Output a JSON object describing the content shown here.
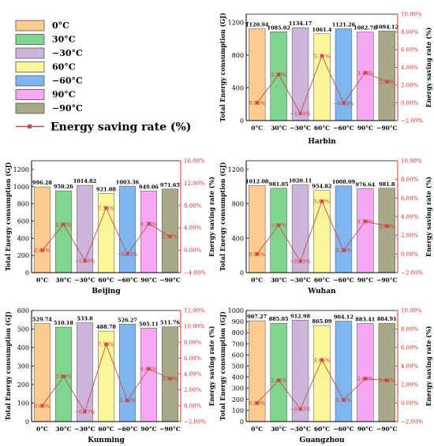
{
  "colors": {
    "bars": [
      "#fbcb8f",
      "#7fd48f",
      "#cdb4dc",
      "#fbf59a",
      "#7fb6ef",
      "#f6a9f2",
      "#a8a888"
    ],
    "line": "#c0504d",
    "axis_right": "#e0312a"
  },
  "legend": {
    "items": [
      "0°C",
      "30°C",
      "−30°C",
      "60°C",
      "−60°C",
      "90°C",
      "−90°C"
    ],
    "line_label": "Energy saving rate (%)"
  },
  "chart_data": [
    {
      "type": "bar",
      "title": "Harbin",
      "categories": [
        "0°C",
        "30°C",
        "−30°C",
        "60°C",
        "−60°C",
        "90°C",
        "−90°C"
      ],
      "values": [
        1120.94,
        1085.02,
        1134.17,
        1061.4,
        1121.26,
        1082.78,
        1094.12
      ],
      "value_labels": [
        "1120.94",
        "1085.02",
        "1134.17",
        "1061.4",
        "1121.26",
        "1082.78",
        "1094.12"
      ],
      "saving_rate": [
        0.0,
        3.2,
        -1.18,
        5.31,
        -0.03,
        3.4,
        2.39
      ],
      "saving_labels": [
        "0.00%",
        "3.20%",
        "−1.18%",
        "5.31%",
        "−0.03%",
        "3.40%",
        "2.39%"
      ],
      "ylabel": "Total Energy consumption (GJ)",
      "y2label": "Energy saving rate (%)",
      "ylim": [
        0,
        1300
      ],
      "yticks": [
        "0",
        "400",
        "800",
        "1200"
      ],
      "yticks_values": [
        0,
        400,
        800,
        1200
      ],
      "y2lim": [
        -2,
        10
      ],
      "y2ticks": [
        "−2.00%",
        "0.00%",
        "2.00%",
        "4.00%",
        "6.00%",
        "8.00%",
        "10.00%"
      ],
      "y2ticks_values": [
        -2,
        0,
        2,
        4,
        6,
        8,
        10
      ]
    },
    {
      "type": "bar",
      "title": "Beijing",
      "categories": [
        "0°C",
        "30°C",
        "−30°C",
        "60°C",
        "−60°C",
        "90°C",
        "−90°C"
      ],
      "values": [
        996.28,
        950.26,
        1014.82,
        921.08,
        1003.36,
        949.06,
        971.65
      ],
      "value_labels": [
        "996.28",
        "950.26",
        "1014.82",
        "921.08",
        "1003.36",
        "949.06",
        "971.65"
      ],
      "saving_rate": [
        0.0,
        4.62,
        -1.86,
        7.55,
        -0.71,
        4.74,
        2.47
      ],
      "saving_labels": [
        "0.00%",
        "4.62%",
        "−1.86%",
        "7.55%",
        "−0.71%",
        "4.74%",
        "2.47%"
      ],
      "ylabel": "Total Energy consumption (GJ)",
      "y2label": "Energy saving rate (%)",
      "ylim": [
        0,
        1300
      ],
      "yticks": [
        "0",
        "200",
        "400",
        "600",
        "800",
        "1000",
        "1200"
      ],
      "yticks_values": [
        0,
        200,
        400,
        600,
        800,
        1000,
        1200
      ],
      "y2lim": [
        -4,
        16
      ],
      "y2ticks": [
        "−4.00%",
        "0.00%",
        "4.00%",
        "8.00%",
        "12.00%",
        "16.00%"
      ],
      "y2ticks_values": [
        -4,
        0,
        4,
        8,
        12,
        16
      ]
    },
    {
      "type": "bar",
      "title": "Wuhan",
      "categories": [
        "0°C",
        "30°C",
        "−30°C",
        "60°C",
        "−60°C",
        "90°C",
        "−90°C"
      ],
      "values": [
        1012.08,
        981.05,
        1020.11,
        954.82,
        1008.09,
        976.64,
        981.8
      ],
      "value_labels": [
        "1012.08",
        "981.05",
        "1020.11",
        "954.82",
        "1008.09",
        "976.64",
        "981.8"
      ],
      "saving_rate": [
        0.0,
        3.07,
        -0.79,
        5.66,
        0.39,
        3.5,
        2.99
      ],
      "saving_labels": [
        "0.00%",
        "3.07%",
        "−0.79%",
        "5.66%",
        "0.39%",
        "3.50%",
        "2.99%"
      ],
      "ylabel": "Total Energy consumption (GJ)",
      "y2label": "Energy saving rate (%)",
      "ylim": [
        0,
        1300
      ],
      "yticks": [
        "0",
        "400",
        "800",
        "1200"
      ],
      "yticks_values": [
        0,
        400,
        800,
        1200
      ],
      "y2lim": [
        -2,
        10
      ],
      "y2ticks": [
        "−2.00%",
        "0.00%",
        "2.00%",
        "4.00%",
        "6.00%",
        "8.00%",
        "10.00%"
      ],
      "y2ticks_values": [
        -2,
        0,
        2,
        4,
        6,
        8,
        10
      ]
    },
    {
      "type": "bar",
      "title": "Kunming",
      "categories": [
        "0°C",
        "30°C",
        "−30°C",
        "60°C",
        "−60°C",
        "90°C",
        "−90°C"
      ],
      "values": [
        529.74,
        510.18,
        533.8,
        488.78,
        526.27,
        505.11,
        511.76
      ],
      "value_labels": [
        "529.74",
        "510.18",
        "533.8",
        "488.78",
        "526.27",
        "505.11",
        "511.76"
      ],
      "saving_rate": [
        0.0,
        3.69,
        -0.77,
        7.73,
        0.66,
        4.65,
        3.39
      ],
      "saving_labels": [
        "0.00%",
        "3.69%",
        "−0.77%",
        "7.73%",
        "0.66%",
        "4.65%",
        "3.39%"
      ],
      "ylabel": "Total Energy consumption (GJ)",
      "y2label": "Energy saving rate (%)",
      "ylim": [
        0,
        600
      ],
      "yticks": [
        "0",
        "100",
        "200",
        "300",
        "400",
        "500",
        "600"
      ],
      "yticks_values": [
        0,
        100,
        200,
        300,
        400,
        500,
        600
      ],
      "y2lim": [
        -2,
        12
      ],
      "y2ticks": [
        "−2.00%",
        "0.00%",
        "2.00%",
        "4.00%",
        "6.00%",
        "8.00%",
        "10.00%",
        "12.00%"
      ],
      "y2ticks_values": [
        -2,
        0,
        2,
        4,
        6,
        8,
        10,
        12
      ]
    },
    {
      "type": "bar",
      "title": "Guangzhou",
      "categories": [
        "0°C",
        "30°C",
        "−30°C",
        "60°C",
        "−60°C",
        "90°C",
        "−90°C"
      ],
      "values": [
        907.27,
        885.05,
        912.98,
        865.09,
        904.12,
        883.41,
        884.91
      ],
      "value_labels": [
        "907.27",
        "885.05",
        "912.98",
        "865.09",
        "904.12",
        "883.41",
        "884.91"
      ],
      "saving_rate": [
        0.0,
        2.45,
        -0.63,
        4.65,
        0.35,
        2.63,
        2.46
      ],
      "saving_labels": [
        "0.00%",
        "2.45%",
        "−0.63%",
        "4.65%",
        "0.35%",
        "2.63%",
        "2.46%"
      ],
      "ylabel": "Total Energy consumption (GJ)",
      "y2label": "Energy saving rate (%)",
      "ylim": [
        0,
        1000
      ],
      "yticks": [
        "0",
        "100",
        "200",
        "300",
        "400",
        "500",
        "600",
        "700",
        "800",
        "900",
        "1000"
      ],
      "yticks_values": [
        0,
        100,
        200,
        300,
        400,
        500,
        600,
        700,
        800,
        900,
        1000
      ],
      "y2lim": [
        -2,
        10
      ],
      "y2ticks": [
        "−2.00%",
        "0.00%",
        "2.00%",
        "4.00%",
        "6.00%",
        "8.00%",
        "10.00%"
      ],
      "y2ticks_values": [
        -2,
        0,
        2,
        4,
        6,
        8,
        10
      ]
    }
  ]
}
